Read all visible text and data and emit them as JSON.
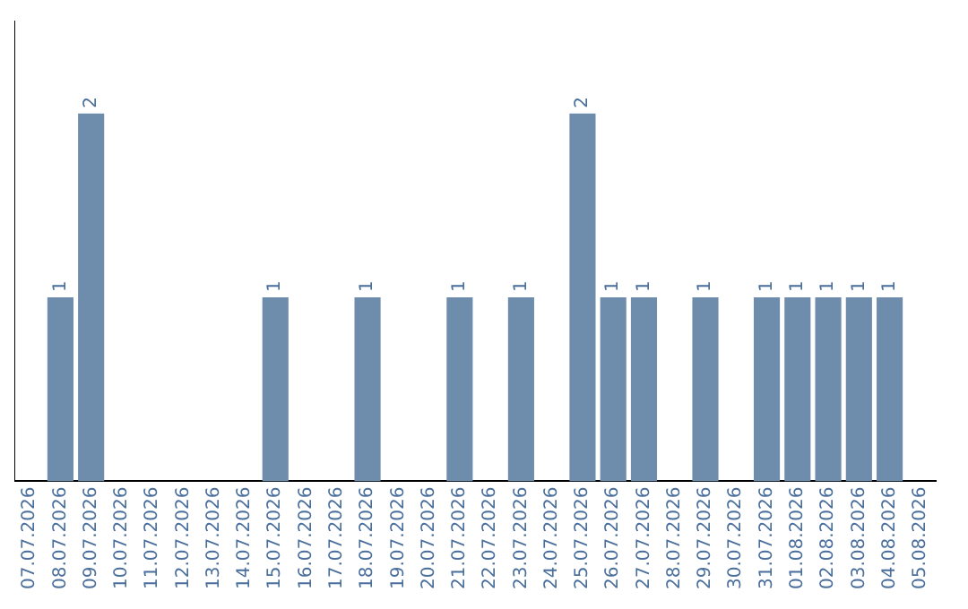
{
  "chart_data": {
    "type": "bar",
    "categories": [
      "07.07.2026",
      "08.07.2026",
      "09.07.2026",
      "10.07.2026",
      "11.07.2026",
      "12.07.2026",
      "13.07.2026",
      "14.07.2026",
      "15.07.2026",
      "16.07.2026",
      "17.07.2026",
      "18.07.2026",
      "19.07.2026",
      "20.07.2026",
      "21.07.2026",
      "22.07.2026",
      "23.07.2026",
      "24.07.2026",
      "25.07.2026",
      "26.07.2026",
      "27.07.2026",
      "28.07.2026",
      "29.07.2026",
      "30.07.2026",
      "31.07.2026",
      "01.08.2026",
      "02.08.2026",
      "03.08.2026",
      "04.08.2026",
      "05.08.2026"
    ],
    "values": [
      0,
      1,
      2,
      0,
      0,
      0,
      0,
      0,
      1,
      0,
      0,
      1,
      0,
      0,
      1,
      0,
      1,
      0,
      2,
      1,
      1,
      0,
      1,
      0,
      1,
      1,
      1,
      1,
      1,
      0
    ],
    "value_labels": [
      null,
      "1",
      "2",
      null,
      null,
      null,
      null,
      null,
      "1",
      null,
      null,
      "1",
      null,
      null,
      "1",
      null,
      "1",
      null,
      "2",
      "1",
      "1",
      null,
      "1",
      null,
      "1",
      "1",
      "1",
      "1",
      "1",
      null
    ],
    "color": "#6e8cab",
    "tick_labels": "x"
  }
}
